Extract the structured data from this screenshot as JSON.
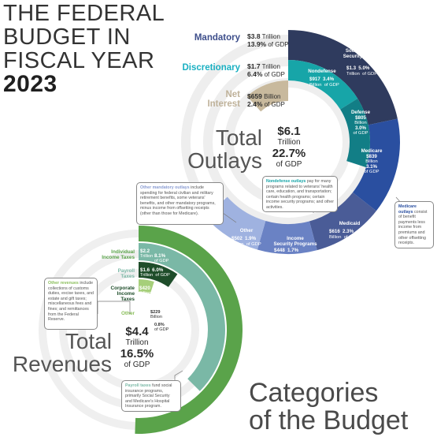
{
  "title": {
    "line1": "THE FEDERAL",
    "line2": "BUDGET IN",
    "line3": "FISCAL YEAR",
    "year": "2023"
  },
  "outlays": {
    "label_line1": "Total",
    "label_line2": "Outlays",
    "total_amount": "$6.1",
    "total_unit": "Trillion",
    "total_gdp": "22.7%",
    "total_gdp_label": "of GDP",
    "legend": {
      "mandatory": {
        "label": "Mandatory",
        "value": "$3.8",
        "unit": "Trillion",
        "gdp": "13.9%",
        "gdp_label": "of GDP",
        "color": "#3d4e8b"
      },
      "discretionary": {
        "label": "Discretionary",
        "value": "$1.7",
        "unit": "Trillion",
        "gdp": "6.4%",
        "gdp_label": "of GDP",
        "color": "#1ab0c2"
      },
      "net_interest": {
        "label_line1": "Net",
        "label_line2": "Interest",
        "value": "$659",
        "unit": "Billion",
        "gdp": "2.4%",
        "gdp_label": "of GDP",
        "color": "#bfb29a"
      }
    },
    "segments": {
      "social_security": {
        "name_line1": "Social",
        "name_line2": "Security",
        "value": "$1.3",
        "unit": "Trillion",
        "gdp": "5.0%",
        "gdp_label": "of GDP",
        "color": "#2f3b5e"
      },
      "medicare": {
        "name": "Medicare",
        "value": "$839",
        "unit": "Billion",
        "gdp": "3.1%",
        "gdp_label": "of GDP",
        "color": "#2a4fa0"
      },
      "medicaid": {
        "name": "Medicaid",
        "value": "$616",
        "unit": "Billion",
        "gdp": "2.3%",
        "gdp_label": "of GDP",
        "color": "#4a5c97"
      },
      "income_security": {
        "name_line1": "Income",
        "name_line2": "Security Programs",
        "value": "$448",
        "unit": "Billion",
        "gdp": "1.7%",
        "gdp_label": "of GDP",
        "color": "#6a82c4"
      },
      "other": {
        "name": "Other",
        "value": "$502",
        "unit": "Billion",
        "gdp": "1.9%",
        "gdp_label": "of GDP",
        "color": "#9fb2e0"
      },
      "nondefense": {
        "name": "Nondefense",
        "value": "$917",
        "unit": "Billion",
        "gdp": "3.4%",
        "gdp_label": "of GDP",
        "color": "#17a5a8"
      },
      "defense": {
        "name": "Defense",
        "value": "$805",
        "unit": "Billion",
        "gdp": "3.0%",
        "gdp_label": "of GDP",
        "color": "#127e86"
      },
      "net_interest": {
        "color": "#c8b99d"
      }
    },
    "callouts": {
      "other_mandatory": {
        "highlight": "Other mandatory outlays",
        "text": " include spending for federal civilian and military retirement benefits, some veterans' benefits, and other mandatory programs, minus income from offsetting receipts (other than those for Medicare)."
      },
      "nondefense": {
        "highlight": "Nondefense outlays",
        "text": " pay for many programs related to veterans' health care, education, and transportation; certain health programs; certain income security programs; and other activities."
      },
      "medicare": {
        "highlight": "Medicare outlays",
        "text": " consist of benefit payments less income from premiums and other offsetting receipts."
      }
    }
  },
  "revenues": {
    "label_line1": "Total",
    "label_line2": "Revenues",
    "total_amount": "$4.4",
    "total_unit": "Trillion",
    "total_gdp": "16.5%",
    "total_gdp_label": "of GDP",
    "categories": {
      "individual": {
        "label_line1": "Individual",
        "label_line2": "Income Taxes",
        "value": "$2.2",
        "unit": "Trillion",
        "gdp": "8.1%",
        "gdp_label": "of GDP",
        "color": "#5aa34a"
      },
      "payroll": {
        "label_line1": "Payroll",
        "label_line2": "Taxes",
        "value": "$1.6",
        "unit": "Trillion",
        "gdp": "6.0%",
        "gdp_label": "of GDP",
        "color": "#7ab8a6"
      },
      "corporate": {
        "label_line1": "Corporate",
        "label_line2": "Income",
        "label_line3": "Taxes",
        "value": "$420",
        "unit": "Billion",
        "gdp": "1.6%",
        "gdp_label": "of GDP",
        "color": "#1e4d2a"
      },
      "other": {
        "label": "Other",
        "value": "$229",
        "unit": "Billion",
        "gdp": "0.8%",
        "gdp_label": "of GDP",
        "color": "#a6cf7a"
      }
    },
    "callouts": {
      "other_revenues": {
        "highlight": "Other revenues",
        "text": " include collections of customs duties, excise taxes, and estate and gift taxes; miscellaneous fees and fines; and remittances from the Federal Reserve."
      },
      "payroll": {
        "highlight": "Payroll taxes",
        "text": " fund social insurance programs, primarily Social Security and Medicare's Hospital Insurance program."
      }
    }
  },
  "footer": {
    "line1": "Categories",
    "line2": "of the Budget"
  }
}
